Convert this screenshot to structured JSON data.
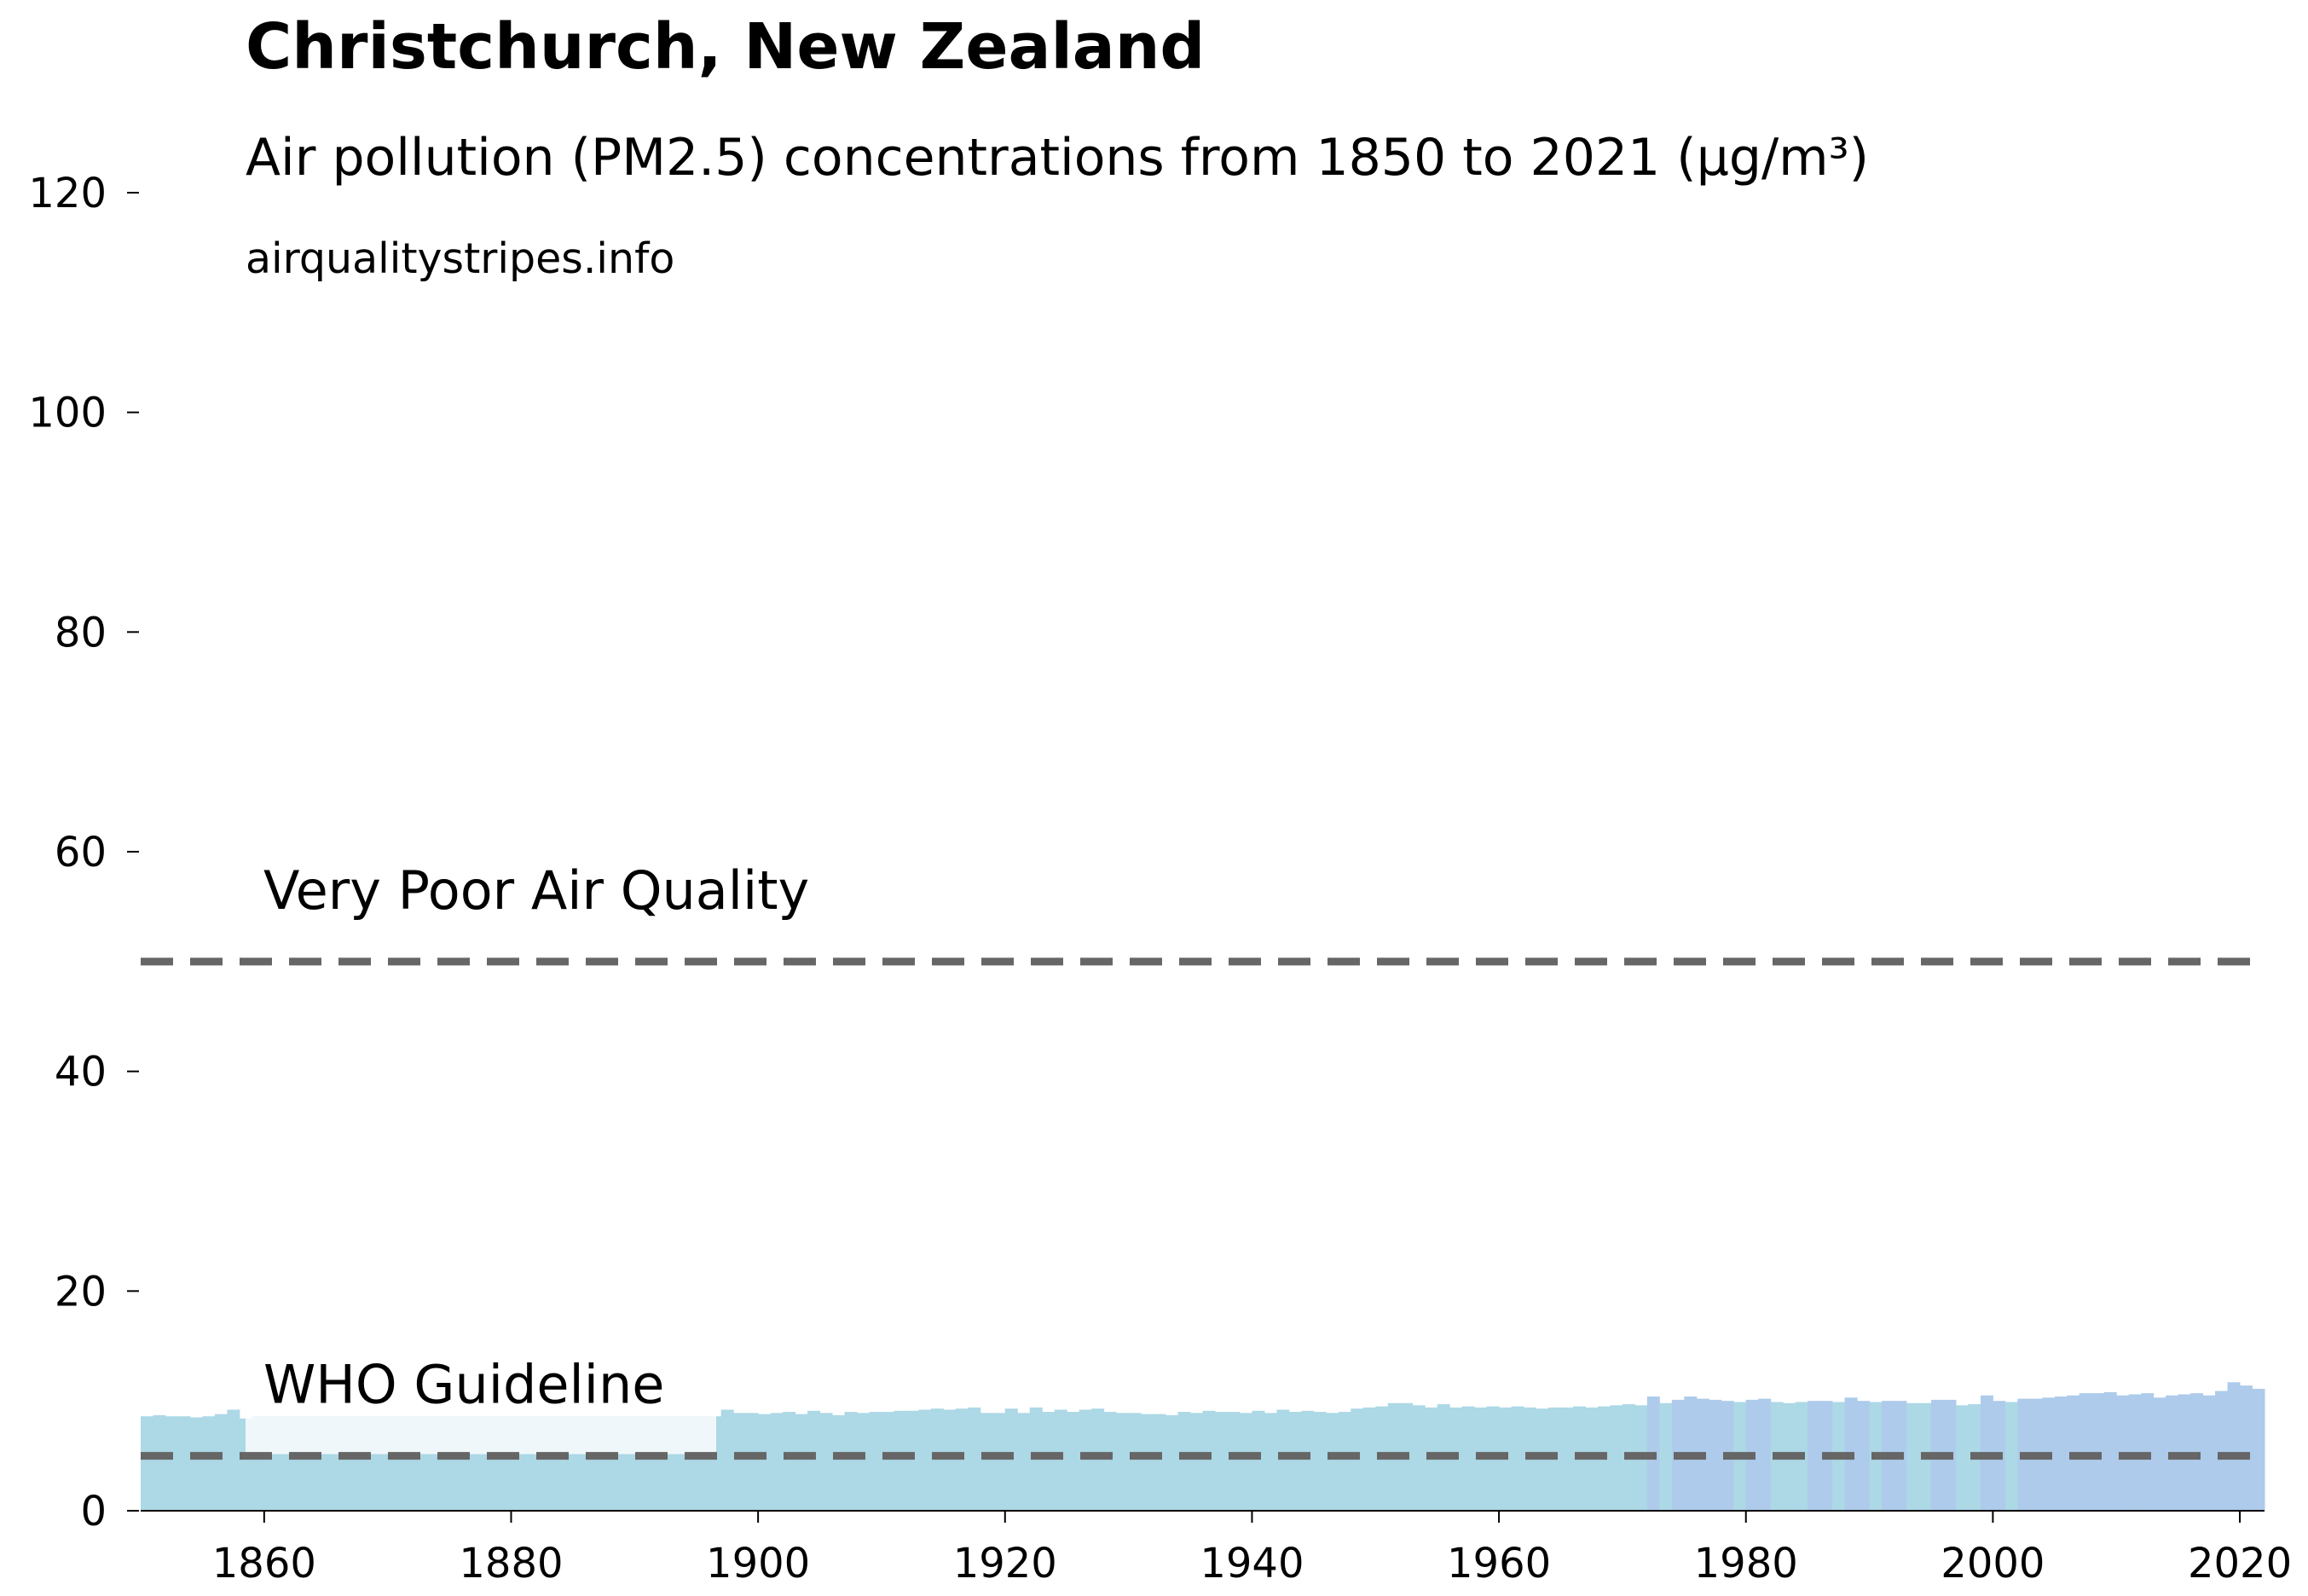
{
  "chart_data": {
    "type": "bar",
    "title": "Christchurch, New Zealand",
    "subtitle": "Air pollution (PM2.5) concentrations from 1850 to 2021 (µg/m³)",
    "source": "airqualitystripes.info",
    "x": [
      1850,
      1851,
      1852,
      1853,
      1854,
      1855,
      1856,
      1857,
      1858,
      1859,
      1860,
      1861,
      1862,
      1863,
      1864,
      1865,
      1866,
      1867,
      1868,
      1869,
      1870,
      1871,
      1872,
      1873,
      1874,
      1875,
      1876,
      1877,
      1878,
      1879,
      1880,
      1881,
      1882,
      1883,
      1884,
      1885,
      1886,
      1887,
      1888,
      1889,
      1890,
      1891,
      1892,
      1893,
      1894,
      1895,
      1896,
      1897,
      1898,
      1899,
      1900,
      1901,
      1902,
      1903,
      1904,
      1905,
      1906,
      1907,
      1908,
      1909,
      1910,
      1911,
      1912,
      1913,
      1914,
      1915,
      1916,
      1917,
      1918,
      1919,
      1920,
      1921,
      1922,
      1923,
      1924,
      1925,
      1926,
      1927,
      1928,
      1929,
      1930,
      1931,
      1932,
      1933,
      1934,
      1935,
      1936,
      1937,
      1938,
      1939,
      1940,
      1941,
      1942,
      1943,
      1944,
      1945,
      1946,
      1947,
      1948,
      1949,
      1950,
      1951,
      1952,
      1953,
      1954,
      1955,
      1956,
      1957,
      1958,
      1959,
      1960,
      1961,
      1962,
      1963,
      1964,
      1965,
      1966,
      1967,
      1968,
      1969,
      1970,
      1971,
      1972,
      1973,
      1974,
      1975,
      1976,
      1977,
      1978,
      1979,
      1980,
      1981,
      1982,
      1983,
      1984,
      1985,
      1986,
      1987,
      1988,
      1989,
      1990,
      1991,
      1992,
      1993,
      1994,
      1995,
      1996,
      1997,
      1998,
      1999,
      2000,
      2001,
      2002,
      2003,
      2004,
      2005,
      2006,
      2007,
      2008,
      2009,
      2010,
      2011,
      2012,
      2013,
      2014,
      2015,
      2016,
      2017,
      2018,
      2019,
      2020,
      2021
    ],
    "values": [
      8.6,
      8.7,
      8.6,
      8.6,
      8.5,
      8.6,
      8.8,
      9.2,
      8.4,
      8.6,
      8.6,
      8.6,
      8.6,
      8.6,
      8.6,
      8.6,
      8.6,
      8.6,
      8.6,
      8.6,
      8.6,
      8.6,
      8.6,
      8.6,
      8.6,
      8.6,
      8.6,
      8.6,
      8.6,
      8.6,
      8.6,
      8.6,
      8.6,
      8.6,
      8.6,
      8.6,
      8.6,
      8.6,
      8.6,
      8.6,
      8.6,
      8.6,
      8.6,
      8.6,
      8.6,
      8.6,
      8.6,
      9.2,
      8.9,
      8.9,
      8.8,
      8.9,
      9.0,
      8.8,
      9.1,
      8.9,
      8.7,
      9.0,
      8.9,
      9.0,
      9.0,
      9.1,
      9.1,
      9.2,
      9.3,
      9.2,
      9.3,
      9.4,
      8.9,
      8.9,
      9.3,
      8.9,
      9.4,
      9.0,
      9.2,
      9.0,
      9.2,
      9.3,
      9.0,
      8.9,
      8.9,
      8.8,
      8.8,
      8.7,
      9.0,
      8.9,
      9.1,
      9.0,
      9.0,
      8.9,
      9.1,
      8.9,
      9.2,
      9.0,
      9.1,
      9.0,
      8.9,
      9.0,
      9.3,
      9.4,
      9.5,
      9.8,
      9.8,
      9.6,
      9.4,
      9.7,
      9.4,
      9.5,
      9.4,
      9.5,
      9.4,
      9.5,
      9.4,
      9.3,
      9.4,
      9.4,
      9.5,
      9.4,
      9.5,
      9.6,
      9.7,
      9.6,
      10.4,
      9.8,
      10.1,
      10.4,
      10.2,
      10.1,
      10.0,
      9.9,
      10.1,
      10.2,
      9.9,
      9.8,
      9.9,
      10.0,
      10.0,
      9.9,
      10.3,
      10.0,
      9.9,
      10.0,
      10.0,
      9.8,
      9.8,
      10.1,
      10.1,
      9.6,
      9.7,
      10.5,
      10.0,
      9.9,
      10.2,
      10.2,
      10.3,
      10.4,
      10.5,
      10.7,
      10.7,
      10.8,
      10.5,
      10.6,
      10.7,
      10.3,
      10.5,
      10.6,
      10.7,
      10.5,
      10.9,
      11.7,
      11.4,
      11.1
    ],
    "colors": [
      "#add8e6",
      "#add8e6",
      "#add8e6",
      "#add8e6",
      "#add8e6",
      "#add8e6",
      "#add8e6",
      "#add8e6",
      "#add8e6",
      "#add8e6",
      "#add8e6",
      "#add8e6",
      "#add8e6",
      "#add8e6",
      "#add8e6",
      "#add8e6",
      "#add8e6",
      "#add8e6",
      "#add8e6",
      "#add8e6",
      "#add8e6",
      "#add8e6",
      "#add8e6",
      "#add8e6",
      "#add8e6",
      "#add8e6",
      "#add8e6",
      "#add8e6",
      "#add8e6",
      "#add8e6",
      "#add8e6",
      "#add8e6",
      "#add8e6",
      "#add8e6",
      "#add8e6",
      "#add8e6",
      "#add8e6",
      "#add8e6",
      "#add8e6",
      "#add8e6",
      "#add8e6",
      "#add8e6",
      "#add8e6",
      "#add8e6",
      "#add8e6",
      "#add8e6",
      "#add8e6",
      "#add8e6",
      "#add8e6",
      "#add8e6",
      "#add8e6",
      "#add8e6",
      "#add8e6",
      "#add8e6",
      "#add8e6",
      "#add8e6",
      "#add8e6",
      "#add8e6",
      "#add8e6",
      "#add8e6",
      "#add8e6",
      "#add8e6",
      "#add8e6",
      "#add8e6",
      "#add8e6",
      "#add8e6",
      "#add8e6",
      "#add8e6",
      "#add8e6",
      "#add8e6",
      "#add8e6",
      "#add8e6",
      "#add8e6",
      "#add8e6",
      "#add8e6",
      "#add8e6",
      "#add8e6",
      "#add8e6",
      "#add8e6",
      "#add8e6",
      "#add8e6",
      "#add8e6",
      "#add8e6",
      "#add8e6",
      "#add8e6",
      "#add8e6",
      "#add8e6",
      "#add8e6",
      "#add8e6",
      "#add8e6",
      "#add8e6",
      "#add8e6",
      "#add8e6",
      "#add8e6",
      "#add8e6",
      "#add8e6",
      "#add8e6",
      "#add8e6",
      "#add8e6",
      "#add8e6",
      "#add8e6",
      "#add8e6",
      "#add8e6",
      "#add8e6",
      "#add8e6",
      "#add8e6",
      "#add8e6",
      "#add8e6",
      "#add8e6",
      "#add8e6",
      "#add8e6",
      "#add8e6",
      "#add8e6",
      "#add8e6",
      "#add8e6",
      "#add8e6",
      "#add8e6",
      "#add8e6",
      "#add8e6",
      "#add8e6",
      "#add8e6",
      "#add8e6",
      "#aecbeb",
      "#add8e6",
      "#aecbeb",
      "#aecbeb",
      "#aecbeb",
      "#aecbeb",
      "#aecbeb",
      "#add8e6",
      "#aecbeb",
      "#aecbeb",
      "#add8e6",
      "#add8e6",
      "#add8e6",
      "#aecbeb",
      "#aecbeb",
      "#add8e6",
      "#aecbeb",
      "#aecbeb",
      "#add8e6",
      "#aecbeb",
      "#aecbeb",
      "#add8e6",
      "#add8e6",
      "#aecbeb",
      "#aecbeb",
      "#add8e6",
      "#add8e6",
      "#aecbeb",
      "#aecbeb",
      "#add8e6",
      "#aecbeb",
      "#aecbeb",
      "#aecbeb",
      "#aecbeb",
      "#aecbeb",
      "#aecbeb",
      "#aecbeb",
      "#aecbeb",
      "#aecbeb",
      "#aecbeb",
      "#aecbeb",
      "#aecbeb",
      "#aecbeb",
      "#aecbeb",
      "#aecbeb",
      "#aecbeb",
      "#aecbeb",
      "#aecbeb",
      "#aecbeb",
      "#aecbeb",
      "#aecbeb"
    ],
    "reference_lines": [
      {
        "value": 50,
        "label": "Very Poor Air Quality"
      },
      {
        "value": 5,
        "label": "WHO Guideline"
      }
    ],
    "xlim": [
      1850,
      2022
    ],
    "xticks": [
      1860,
      1880,
      1900,
      1920,
      1940,
      1960,
      1980,
      2000,
      2020
    ],
    "ylim": [
      0,
      120
    ],
    "yticks": [
      0,
      20,
      40,
      60,
      80,
      100,
      120
    ]
  }
}
